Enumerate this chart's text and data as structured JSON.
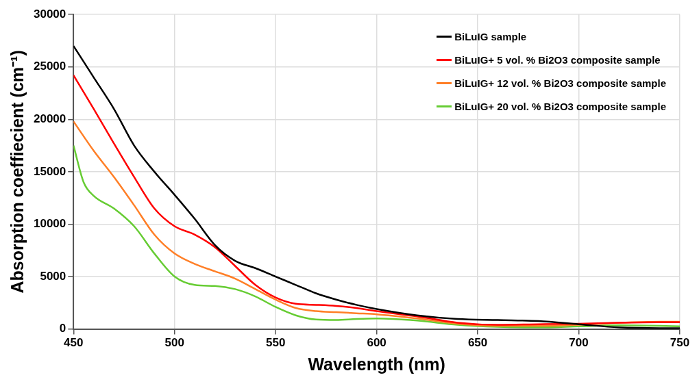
{
  "chart_data": {
    "type": "line",
    "xlabel": "Wavelength (nm)",
    "ylabel": "Absorption coeffiecient (cm⁻¹)",
    "xlim": [
      450,
      750
    ],
    "xticks": [
      450,
      500,
      550,
      600,
      650,
      700,
      750
    ],
    "ylim": [
      0,
      30000
    ],
    "yticks": [
      0,
      5000,
      10000,
      15000,
      20000,
      25000,
      30000
    ],
    "grid": true,
    "legend": "top right",
    "line_style": "solid",
    "marker": "none",
    "series": [
      {
        "name": "BiLuIG sample",
        "color": "#000000",
        "x": [
          450,
          460,
          470,
          480,
          490,
          500,
          510,
          520,
          530,
          540,
          550,
          560,
          570,
          580,
          590,
          600,
          620,
          640,
          660,
          680,
          700,
          720,
          740,
          750
        ],
        "values": [
          27000,
          24000,
          21000,
          17500,
          15000,
          12800,
          10500,
          8000,
          6500,
          5800,
          5000,
          4200,
          3400,
          2800,
          2300,
          1900,
          1300,
          950,
          850,
          750,
          450,
          150,
          80,
          80
        ]
      },
      {
        "name": "BiLuIG+ 5 vol. % Bi2O3 composite sample",
        "color": "#ff0000",
        "x": [
          450,
          460,
          470,
          480,
          490,
          500,
          510,
          520,
          530,
          540,
          550,
          560,
          570,
          580,
          590,
          600,
          620,
          640,
          660,
          680,
          700,
          720,
          740,
          750
        ],
        "values": [
          24200,
          21000,
          17700,
          14500,
          11500,
          9800,
          9000,
          7800,
          6000,
          4200,
          3000,
          2400,
          2300,
          2200,
          2000,
          1700,
          1200,
          600,
          400,
          450,
          500,
          600,
          650,
          650
        ]
      },
      {
        "name": "BiLuIG+ 12 vol. % Bi2O3 composite sample",
        "color": "#ff7f27",
        "x": [
          450,
          460,
          470,
          480,
          490,
          500,
          510,
          520,
          530,
          540,
          550,
          560,
          570,
          580,
          590,
          600,
          620,
          640,
          660,
          680,
          700,
          720,
          740,
          750
        ],
        "values": [
          19800,
          17000,
          14500,
          11800,
          9000,
          7200,
          6200,
          5500,
          4800,
          3800,
          2800,
          2000,
          1700,
          1600,
          1500,
          1400,
          1000,
          500,
          300,
          300,
          400,
          600,
          700,
          700
        ]
      },
      {
        "name": "BiLuIG+ 20 vol. % Bi2O3 composite sample",
        "color": "#66cc33",
        "x": [
          450,
          455,
          460,
          470,
          480,
          490,
          500,
          510,
          520,
          530,
          540,
          550,
          560,
          570,
          580,
          590,
          600,
          620,
          640,
          660,
          680,
          700,
          720,
          740,
          750
        ],
        "values": [
          17500,
          14000,
          12700,
          11500,
          9800,
          7200,
          5000,
          4200,
          4100,
          3800,
          3100,
          2100,
          1300,
          900,
          850,
          950,
          1000,
          800,
          400,
          200,
          150,
          250,
          350,
          300,
          250
        ]
      }
    ]
  }
}
